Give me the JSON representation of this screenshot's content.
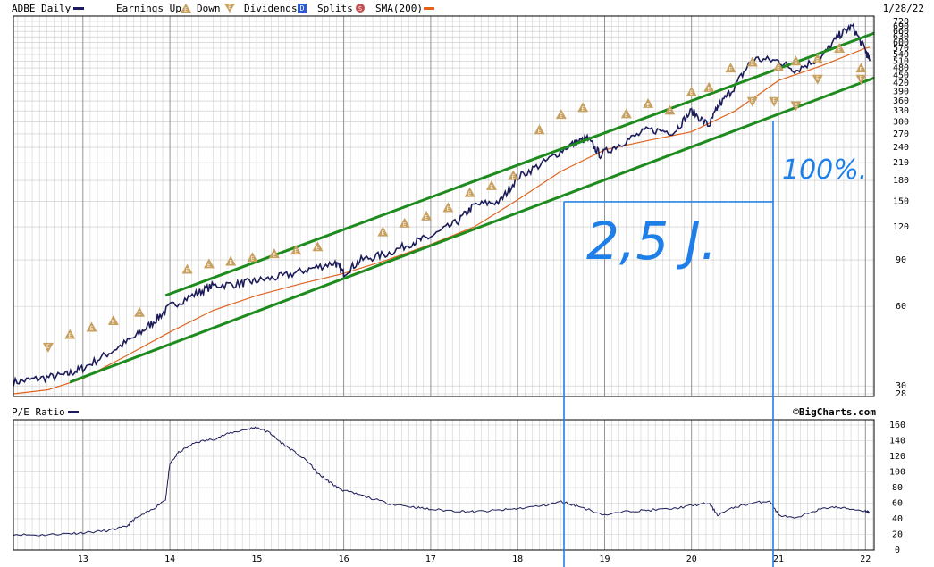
{
  "header": {
    "symbol_label": "ADBE Daily",
    "earnings_up_label": "Earnings Up",
    "earnings_down_label": "Down",
    "dividends_label": "Dividends",
    "dividends_badge": "D",
    "splits_label": "Splits",
    "splits_badge": "S",
    "sma_label": "SMA(200)",
    "date_label": "1/28/22",
    "earnings_marker_glyph": "E"
  },
  "lower_panel": {
    "title": "P/E Ratio",
    "brand": "©BigCharts.com"
  },
  "annotations": {
    "percent_text": "100%.",
    "duration_text": "2,5 J."
  },
  "colors": {
    "price_line": "#1c1c5a",
    "sma_line": "#e0641e",
    "channel_line": "#1e8b1e",
    "earnings_marker": "#c8a060",
    "dividends_badge": "#2a5ad8",
    "splits_badge": "#c05050",
    "annotation": "#1f7fe8",
    "grid": "#c8c8c8"
  },
  "chart_data": [
    {
      "type": "line",
      "title": "ADBE Daily",
      "y_scale": "log",
      "ylim": [
        28,
        720
      ],
      "xlim": [
        2012.2,
        2022.1
      ],
      "x_ticks": [
        "13",
        "14",
        "15",
        "16",
        "17",
        "18",
        "19",
        "20",
        "21",
        "22"
      ],
      "x_tick_positions": [
        2013,
        2014,
        2015,
        2016,
        2017,
        2018,
        2019,
        2020,
        2021,
        2022
      ],
      "y_ticks": [
        28,
        30,
        60,
        90,
        120,
        150,
        180,
        210,
        240,
        270,
        300,
        330,
        360,
        390,
        420,
        450,
        480,
        510,
        540,
        570,
        600,
        630,
        660,
        690,
        720
      ],
      "grid": true,
      "series": [
        {
          "name": "ADBE Daily",
          "x": [
            2012.2,
            2012.5,
            2012.8,
            2013.0,
            2013.3,
            2013.6,
            2013.8,
            2014.0,
            2014.3,
            2014.5,
            2014.8,
            2015.0,
            2015.3,
            2015.6,
            2015.9,
            2016.0,
            2016.2,
            2016.5,
            2016.8,
            2017.0,
            2017.3,
            2017.5,
            2017.8,
            2018.0,
            2018.3,
            2018.6,
            2018.8,
            2018.95,
            2019.2,
            2019.5,
            2019.8,
            2020.0,
            2020.2,
            2020.3,
            2020.5,
            2020.7,
            2021.0,
            2021.2,
            2021.5,
            2021.7,
            2021.85,
            2022.0,
            2022.05
          ],
          "y": [
            31,
            32,
            33,
            35,
            40,
            46,
            52,
            60,
            67,
            72,
            73,
            75,
            78,
            83,
            88,
            80,
            90,
            95,
            105,
            110,
            125,
            145,
            150,
            185,
            210,
            245,
            260,
            225,
            250,
            280,
            275,
            330,
            290,
            340,
            410,
            520,
            510,
            470,
            530,
            640,
            690,
            560,
            510
          ]
        },
        {
          "name": "SMA(200)",
          "x": [
            2012.2,
            2012.6,
            2013.0,
            2013.5,
            2014.0,
            2014.5,
            2015.0,
            2015.5,
            2016.0,
            2016.5,
            2017.0,
            2017.5,
            2018.0,
            2018.5,
            2019.0,
            2019.5,
            2020.0,
            2020.5,
            2021.0,
            2021.5,
            2022.0,
            2022.05
          ],
          "y": [
            28,
            29,
            32,
            39,
            48,
            58,
            66,
            73,
            80,
            90,
            103,
            120,
            152,
            195,
            235,
            255,
            275,
            330,
            430,
            490,
            570,
            575
          ]
        }
      ],
      "channel_lines": [
        {
          "x": [
            2013.95,
            2022.1
          ],
          "y": [
            66,
            650
          ]
        },
        {
          "x": [
            2012.85,
            2022.1
          ],
          "y": [
            31,
            440
          ]
        }
      ],
      "earnings_markers_up": [
        {
          "x": 2012.85,
          "y": 47
        },
        {
          "x": 2013.1,
          "y": 50
        },
        {
          "x": 2013.35,
          "y": 53
        },
        {
          "x": 2013.65,
          "y": 57
        },
        {
          "x": 2014.2,
          "y": 83
        },
        {
          "x": 2014.45,
          "y": 87
        },
        {
          "x": 2014.7,
          "y": 89
        },
        {
          "x": 2014.95,
          "y": 92
        },
        {
          "x": 2015.2,
          "y": 95
        },
        {
          "x": 2015.45,
          "y": 98
        },
        {
          "x": 2015.7,
          "y": 101
        },
        {
          "x": 2016.45,
          "y": 115
        },
        {
          "x": 2016.7,
          "y": 124
        },
        {
          "x": 2016.95,
          "y": 132
        },
        {
          "x": 2017.2,
          "y": 142
        },
        {
          "x": 2017.45,
          "y": 162
        },
        {
          "x": 2017.7,
          "y": 172
        },
        {
          "x": 2017.95,
          "y": 188
        },
        {
          "x": 2018.25,
          "y": 280
        },
        {
          "x": 2018.5,
          "y": 320
        },
        {
          "x": 2018.75,
          "y": 340
        },
        {
          "x": 2019.25,
          "y": 322
        },
        {
          "x": 2019.5,
          "y": 352
        },
        {
          "x": 2019.75,
          "y": 332
        },
        {
          "x": 2020.0,
          "y": 390
        },
        {
          "x": 2020.2,
          "y": 405
        },
        {
          "x": 2020.45,
          "y": 480
        },
        {
          "x": 2020.7,
          "y": 505
        },
        {
          "x": 2021.0,
          "y": 485
        },
        {
          "x": 2021.2,
          "y": 510
        },
        {
          "x": 2021.45,
          "y": 520
        },
        {
          "x": 2021.7,
          "y": 570
        },
        {
          "x": 2021.95,
          "y": 480
        }
      ],
      "earnings_markers_down": [
        {
          "x": 2012.6,
          "y": 42
        },
        {
          "x": 2020.7,
          "y": 358
        },
        {
          "x": 2020.95,
          "y": 358
        },
        {
          "x": 2021.2,
          "y": 345
        },
        {
          "x": 2021.45,
          "y": 435
        },
        {
          "x": 2021.95,
          "y": 435
        }
      ]
    },
    {
      "type": "line",
      "title": "P/E Ratio",
      "ylim": [
        0,
        160
      ],
      "y_ticks": [
        0,
        20,
        40,
        60,
        80,
        100,
        120,
        140,
        160
      ],
      "xlim": [
        2012.2,
        2022.1
      ],
      "grid": true,
      "series": [
        {
          "name": "P/E Ratio",
          "x": [
            2012.2,
            2012.5,
            2012.8,
            2013.0,
            2013.3,
            2013.5,
            2013.6,
            2013.8,
            2013.95,
            2014.0,
            2014.1,
            2014.3,
            2014.5,
            2014.7,
            2014.9,
            2015.0,
            2015.15,
            2015.25,
            2015.4,
            2015.6,
            2015.7,
            2015.8,
            2015.9,
            2016.0,
            2016.2,
            2016.5,
            2016.8,
            2017.0,
            2017.3,
            2017.5,
            2017.8,
            2018.0,
            2018.3,
            2018.5,
            2018.7,
            2019.0,
            2019.3,
            2019.5,
            2019.8,
            2020.0,
            2020.2,
            2020.3,
            2020.5,
            2020.7,
            2020.9,
            2021.0,
            2021.2,
            2021.4,
            2021.6,
            2021.8,
            2022.0,
            2022.05
          ],
          "y": [
            20,
            19,
            21,
            22,
            25,
            30,
            40,
            52,
            65,
            110,
            125,
            138,
            142,
            150,
            155,
            157,
            150,
            140,
            128,
            112,
            98,
            90,
            82,
            76,
            70,
            60,
            55,
            52,
            50,
            49,
            51,
            53,
            57,
            62,
            56,
            45,
            50,
            51,
            53,
            57,
            60,
            45,
            55,
            60,
            63,
            45,
            40,
            50,
            55,
            53,
            50,
            48
          ]
        }
      ]
    }
  ]
}
